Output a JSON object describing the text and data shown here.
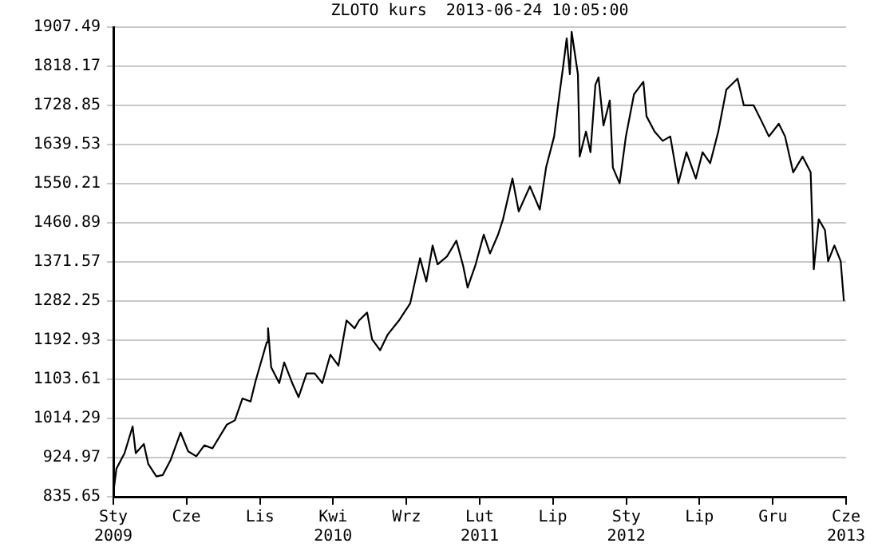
{
  "chart_data": {
    "type": "line",
    "title": "ZLOTO kurs  2013-06-24 10:05:00",
    "x": [
      "2009-01-01",
      "2009-01-08",
      "2009-01-26",
      "2009-02-13",
      "2009-02-20",
      "2009-03-10",
      "2009-03-20",
      "2009-04-07",
      "2009-04-21",
      "2009-05-09",
      "2009-05-31",
      "2009-06-17",
      "2009-07-05",
      "2009-07-23",
      "2009-08-10",
      "2009-09-11",
      "2009-09-29",
      "2009-10-16",
      "2009-11-03",
      "2009-11-14",
      "2009-12-09",
      "2009-12-12",
      "2009-12-19",
      "2010-01-06",
      "2010-01-17",
      "2010-02-04",
      "2010-02-18",
      "2010-03-08",
      "2010-03-26",
      "2010-04-12",
      "2010-04-30",
      "2010-05-18",
      "2010-06-05",
      "2010-06-23",
      "2010-07-03",
      "2010-07-21",
      "2010-08-01",
      "2010-08-19",
      "2010-09-05",
      "2010-09-30",
      "2010-10-25",
      "2010-11-16",
      "2010-11-30",
      "2010-12-14",
      "2010-12-25",
      "2011-01-15",
      "2011-02-05",
      "2011-02-20",
      "2011-03-02",
      "2011-03-20",
      "2011-04-07",
      "2011-04-21",
      "2011-05-09",
      "2011-05-20",
      "2011-06-10",
      "2011-06-24",
      "2011-07-19",
      "2011-08-10",
      "2011-08-24",
      "2011-09-11",
      "2011-09-21",
      "2011-10-02",
      "2011-10-09",
      "2011-10-16",
      "2011-10-20",
      "2011-11-03",
      "2011-11-07",
      "2011-11-21",
      "2011-12-01",
      "2011-12-12",
      "2011-12-19",
      "2011-12-30",
      "2012-01-13",
      "2012-01-20",
      "2012-02-04",
      "2012-02-18",
      "2012-03-07",
      "2012-03-28",
      "2012-04-04",
      "2012-04-22",
      "2012-05-10",
      "2012-05-27",
      "2012-06-14",
      "2012-07-02",
      "2012-07-23",
      "2012-08-07",
      "2012-08-24",
      "2012-09-11",
      "2012-09-29",
      "2012-10-24",
      "2012-11-07",
      "2012-11-29",
      "2012-12-16",
      "2013-01-02",
      "2013-01-24",
      "2013-02-07",
      "2013-02-25",
      "2013-03-18",
      "2013-04-05",
      "2013-04-12",
      "2013-04-23",
      "2013-05-07",
      "2013-05-14",
      "2013-05-28",
      "2013-06-11",
      "2013-06-18"
    ],
    "series": [
      {
        "color": "#000000",
        "values": [
          845,
          900,
          935,
          996,
          935,
          956,
          910,
          882,
          885,
          920,
          982,
          939,
          928,
          953,
          946,
          1000,
          1010,
          1060,
          1053,
          1099,
          1188,
          1220,
          1131,
          1095,
          1142,
          1095,
          1063,
          1117,
          1117,
          1095,
          1160,
          1135,
          1238,
          1220,
          1238,
          1256,
          1195,
          1170,
          1206,
          1238,
          1277,
          1380,
          1327,
          1409,
          1366,
          1384,
          1420,
          1363,
          1313,
          1366,
          1434,
          1391,
          1434,
          1469,
          1562,
          1487,
          1544,
          1491,
          1587,
          1658,
          1740,
          1825,
          1882,
          1800,
          1897,
          1800,
          1612,
          1669,
          1622,
          1776,
          1793,
          1683,
          1740,
          1587,
          1551,
          1658,
          1754,
          1783,
          1704,
          1669,
          1648,
          1658,
          1551,
          1622,
          1562,
          1622,
          1597,
          1669,
          1765,
          1790,
          1729,
          1729,
          1694,
          1658,
          1687,
          1658,
          1576,
          1612,
          1576,
          1355,
          1469,
          1444,
          1373,
          1409,
          1373,
          1284
        ]
      }
    ],
    "xlim": [
      "2009-01-01",
      "2013-06-23"
    ],
    "xticks": [
      {
        "value": "2009-01-01",
        "label": "Sty 2009"
      },
      {
        "value": "2009-06-13",
        "label": "Cze"
      },
      {
        "value": "2009-11-24",
        "label": "Lis"
      },
      {
        "value": "2010-05-06",
        "label": "Kwi 2010"
      },
      {
        "value": "2010-10-17",
        "label": "Wrz"
      },
      {
        "value": "2011-03-29",
        "label": "Lut 2011"
      },
      {
        "value": "2011-09-08",
        "label": "Lip"
      },
      {
        "value": "2012-02-19",
        "label": "Sty 2012"
      },
      {
        "value": "2012-07-31",
        "label": "Lip"
      },
      {
        "value": "2013-01-11",
        "label": "Gru"
      },
      {
        "value": "2013-06-23",
        "label": "Cze 2013"
      }
    ],
    "ylim": [
      835.65,
      1907.49
    ],
    "yticks": [
      835.65,
      924.97,
      1014.29,
      1103.61,
      1192.93,
      1282.25,
      1371.57,
      1460.89,
      1550.21,
      1639.53,
      1728.85,
      1818.17,
      1907.49
    ],
    "grid": "y",
    "legend": false,
    "marker": "none",
    "line_style": "solid"
  }
}
